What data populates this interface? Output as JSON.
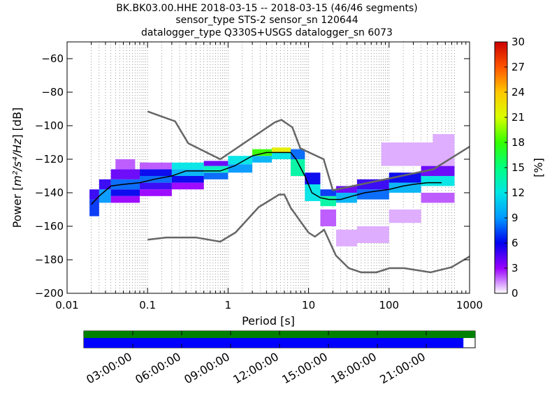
{
  "title_lines": [
    "BK.BK03.00.HHE   2018-03-15 -- 2018-03-15  (46/46 segments)",
    "sensor_type STS-2 sensor_sn 120644",
    "datalogger_type Q330S+USGS datalogger_sn 6073"
  ],
  "chart_data": {
    "type": "heatmap",
    "title": "BK.BK03.00.HHE   2018-03-15 -- 2018-03-15  (46/46 segments)",
    "xlabel": "Period [s]",
    "ylabel": "Power [m²/s⁴/Hz] [dB]",
    "x_scale": "log",
    "xlim": [
      0.01,
      1000
    ],
    "ylim": [
      -200,
      -50
    ],
    "grid": "dotted vertical lines at period bins",
    "x_ticks": [
      "0.01",
      "0.1",
      "1",
      "10",
      "100",
      "1000"
    ],
    "x_tick_values": [
      0.01,
      0.1,
      1,
      10,
      100,
      1000
    ],
    "y_ticks": [
      "−60",
      "−80",
      "−100",
      "−120",
      "−140",
      "−160",
      "−180",
      "−200"
    ],
    "y_tick_values": [
      -60,
      -80,
      -100,
      -120,
      -140,
      -160,
      -180,
      -200
    ],
    "colorbar": {
      "label": "[%]",
      "range": [
        0,
        30
      ],
      "ticks": [
        "0",
        "3",
        "6",
        "9",
        "12",
        "15",
        "18",
        "21",
        "24",
        "27",
        "30"
      ],
      "tick_values": [
        0,
        3,
        6,
        9,
        12,
        15,
        18,
        21,
        24,
        27,
        30
      ]
    },
    "noise_models": [
      {
        "name": "NHNM",
        "color": "#666666",
        "x": [
          0.1,
          0.22,
          0.32,
          0.8,
          3.8,
          4.6,
          6.3,
          7.9,
          15.4,
          20,
          354.8,
          1000
        ],
        "y": [
          -91.5,
          -97.4,
          -110.5,
          -120.0,
          -98.0,
          -96.5,
          -101.0,
          -113.5,
          -120.0,
          -138.5,
          -126.0,
          -112.5
        ]
      },
      {
        "name": "NLNM",
        "color": "#666666",
        "x": [
          0.1,
          0.17,
          0.4,
          0.8,
          1.24,
          2.4,
          4.3,
          5.0,
          6.0,
          10.0,
          12.0,
          15.6,
          21.9,
          31.6,
          45.0,
          70.0,
          101.0,
          154.0,
          328.0,
          600.0,
          1000.0
        ],
        "y": [
          -168.0,
          -166.7,
          -166.7,
          -169.2,
          -163.7,
          -148.6,
          -141.1,
          -141.1,
          -149.0,
          -163.8,
          -166.2,
          -162.1,
          -177.5,
          -185.0,
          -187.5,
          -187.5,
          -185.0,
          -185.0,
          -187.5,
          -184.4,
          -178.0
        ]
      }
    ],
    "series": [
      {
        "name": "",
        "color": "#000000",
        "x": [
          0.02,
          0.025,
          0.035,
          0.05,
          0.08,
          0.12,
          0.2,
          0.3,
          0.5,
          0.8,
          1.2,
          2.0,
          3.0,
          4.0,
          5.0,
          6.0,
          7.0,
          9.0,
          11,
          14,
          18,
          25,
          35,
          50,
          70,
          100,
          150,
          200,
          300,
          450
        ],
        "y": [
          -147,
          -142,
          -136,
          -135,
          -134,
          -132,
          -130,
          -127,
          -127,
          -127,
          -124,
          -118,
          -116,
          -116,
          -116,
          -116,
          -120,
          -130,
          -140,
          -143,
          -144,
          -144,
          -142,
          -140,
          -139,
          -138,
          -136,
          -135,
          -134,
          -134
        ]
      }
    ],
    "histogram_cells": [
      {
        "x": [
          0.019,
          0.025
        ],
        "y": [
          -154,
          -144
        ],
        "pct": 7
      },
      {
        "x": [
          0.019,
          0.025
        ],
        "y": [
          -144,
          -138
        ],
        "pct": 5
      },
      {
        "x": [
          0.025,
          0.035
        ],
        "y": [
          -146,
          -138
        ],
        "pct": 9
      },
      {
        "x": [
          0.025,
          0.035
        ],
        "y": [
          -138,
          -132
        ],
        "pct": 5
      },
      {
        "x": [
          0.035,
          0.08
        ],
        "y": [
          -142,
          -138
        ],
        "pct": 6
      },
      {
        "x": [
          0.035,
          0.08
        ],
        "y": [
          -138,
          -132
        ],
        "pct": 8
      },
      {
        "x": [
          0.035,
          0.08
        ],
        "y": [
          -132,
          -126
        ],
        "pct": 4
      },
      {
        "x": [
          0.035,
          0.08
        ],
        "y": [
          -146,
          -142
        ],
        "pct": 3
      },
      {
        "x": [
          0.04,
          0.07
        ],
        "y": [
          -126,
          -120
        ],
        "pct": 2
      },
      {
        "x": [
          0.08,
          0.2
        ],
        "y": [
          -138,
          -134
        ],
        "pct": 5
      },
      {
        "x": [
          0.08,
          0.2
        ],
        "y": [
          -134,
          -130
        ],
        "pct": 8
      },
      {
        "x": [
          0.08,
          0.2
        ],
        "y": [
          -130,
          -126
        ],
        "pct": 6
      },
      {
        "x": [
          0.08,
          0.2
        ],
        "y": [
          -126,
          -122
        ],
        "pct": 2
      },
      {
        "x": [
          0.08,
          0.2
        ],
        "y": [
          -142,
          -138
        ],
        "pct": 3
      },
      {
        "x": [
          0.2,
          0.5
        ],
        "y": [
          -134,
          -130
        ],
        "pct": 6
      },
      {
        "x": [
          0.2,
          0.5
        ],
        "y": [
          -130,
          -126
        ],
        "pct": 10
      },
      {
        "x": [
          0.2,
          0.5
        ],
        "y": [
          -126,
          -122
        ],
        "pct": 12
      },
      {
        "x": [
          0.2,
          0.5
        ],
        "y": [
          -138,
          -134
        ],
        "pct": 3
      },
      {
        "x": [
          0.5,
          1.0
        ],
        "y": [
          -132,
          -128
        ],
        "pct": 8
      },
      {
        "x": [
          0.5,
          1.0
        ],
        "y": [
          -128,
          -124
        ],
        "pct": 13
      },
      {
        "x": [
          0.5,
          1.0
        ],
        "y": [
          -124,
          -121
        ],
        "pct": 4
      },
      {
        "x": [
          1.0,
          2.0
        ],
        "y": [
          -128,
          -123
        ],
        "pct": 9
      },
      {
        "x": [
          1.0,
          2.0
        ],
        "y": [
          -123,
          -118
        ],
        "pct": 12
      },
      {
        "x": [
          2.0,
          3.5
        ],
        "y": [
          -122,
          -118
        ],
        "pct": 10
      },
      {
        "x": [
          2.0,
          3.5
        ],
        "y": [
          -118,
          -114
        ],
        "pct": 18
      },
      {
        "x": [
          3.5,
          6.0
        ],
        "y": [
          -120,
          -116
        ],
        "pct": 12
      },
      {
        "x": [
          3.5,
          6.0
        ],
        "y": [
          -116,
          -113
        ],
        "pct": 22
      },
      {
        "x": [
          6.0,
          9.0
        ],
        "y": [
          -130,
          -120
        ],
        "pct": 14
      },
      {
        "x": [
          6.0,
          9.0
        ],
        "y": [
          -120,
          -114
        ],
        "pct": 8
      },
      {
        "x": [
          9.0,
          14.0
        ],
        "y": [
          -145,
          -135
        ],
        "pct": 12
      },
      {
        "x": [
          9.0,
          14.0
        ],
        "y": [
          -135,
          -128
        ],
        "pct": 6
      },
      {
        "x": [
          14.0,
          22.0
        ],
        "y": [
          -148,
          -142
        ],
        "pct": 14
      },
      {
        "x": [
          14.0,
          22.0
        ],
        "y": [
          -142,
          -138
        ],
        "pct": 7
      },
      {
        "x": [
          14.0,
          22.0
        ],
        "y": [
          -160,
          -150
        ],
        "pct": 2
      },
      {
        "x": [
          22.0,
          40.0
        ],
        "y": [
          -146,
          -140
        ],
        "pct": 10
      },
      {
        "x": [
          22.0,
          40.0
        ],
        "y": [
          -140,
          -136
        ],
        "pct": 4
      },
      {
        "x": [
          22.0,
          40.0
        ],
        "y": [
          -172,
          -162
        ],
        "pct": 1
      },
      {
        "x": [
          40.0,
          100.0
        ],
        "y": [
          -144,
          -138
        ],
        "pct": 8
      },
      {
        "x": [
          40.0,
          100.0
        ],
        "y": [
          -138,
          -132
        ],
        "pct": 5
      },
      {
        "x": [
          40.0,
          100.0
        ],
        "y": [
          -170,
          -160
        ],
        "pct": 1
      },
      {
        "x": [
          100.0,
          250.0
        ],
        "y": [
          -140,
          -134
        ],
        "pct": 10
      },
      {
        "x": [
          100.0,
          250.0
        ],
        "y": [
          -134,
          -128
        ],
        "pct": 6
      },
      {
        "x": [
          100.0,
          250.0
        ],
        "y": [
          -158,
          -150
        ],
        "pct": 1
      },
      {
        "x": [
          250.0,
          650.0
        ],
        "y": [
          -136,
          -130
        ],
        "pct": 12
      },
      {
        "x": [
          250.0,
          650.0
        ],
        "y": [
          -130,
          -124
        ],
        "pct": 4
      },
      {
        "x": [
          250.0,
          650.0
        ],
        "y": [
          -146,
          -140
        ],
        "pct": 2
      },
      {
        "x": [
          80.0,
          650.0
        ],
        "y": [
          -124,
          -110
        ],
        "pct": 1
      },
      {
        "x": [
          350.0,
          650.0
        ],
        "y": [
          -110,
          -105
        ],
        "pct": 1
      }
    ]
  },
  "time_axis": {
    "coverage_fraction": 0.97,
    "labels": [
      "03:00:00",
      "06:00:00",
      "09:00:00",
      "12:00:00",
      "15:00:00",
      "18:00:00",
      "21:00:00"
    ],
    "label_hours": [
      3,
      6,
      9,
      12,
      15,
      18,
      21
    ],
    "total_hours": 24,
    "colors": {
      "coverage": "#0000ff",
      "gaps_bar": "#008000",
      "frame": "#000000"
    }
  }
}
